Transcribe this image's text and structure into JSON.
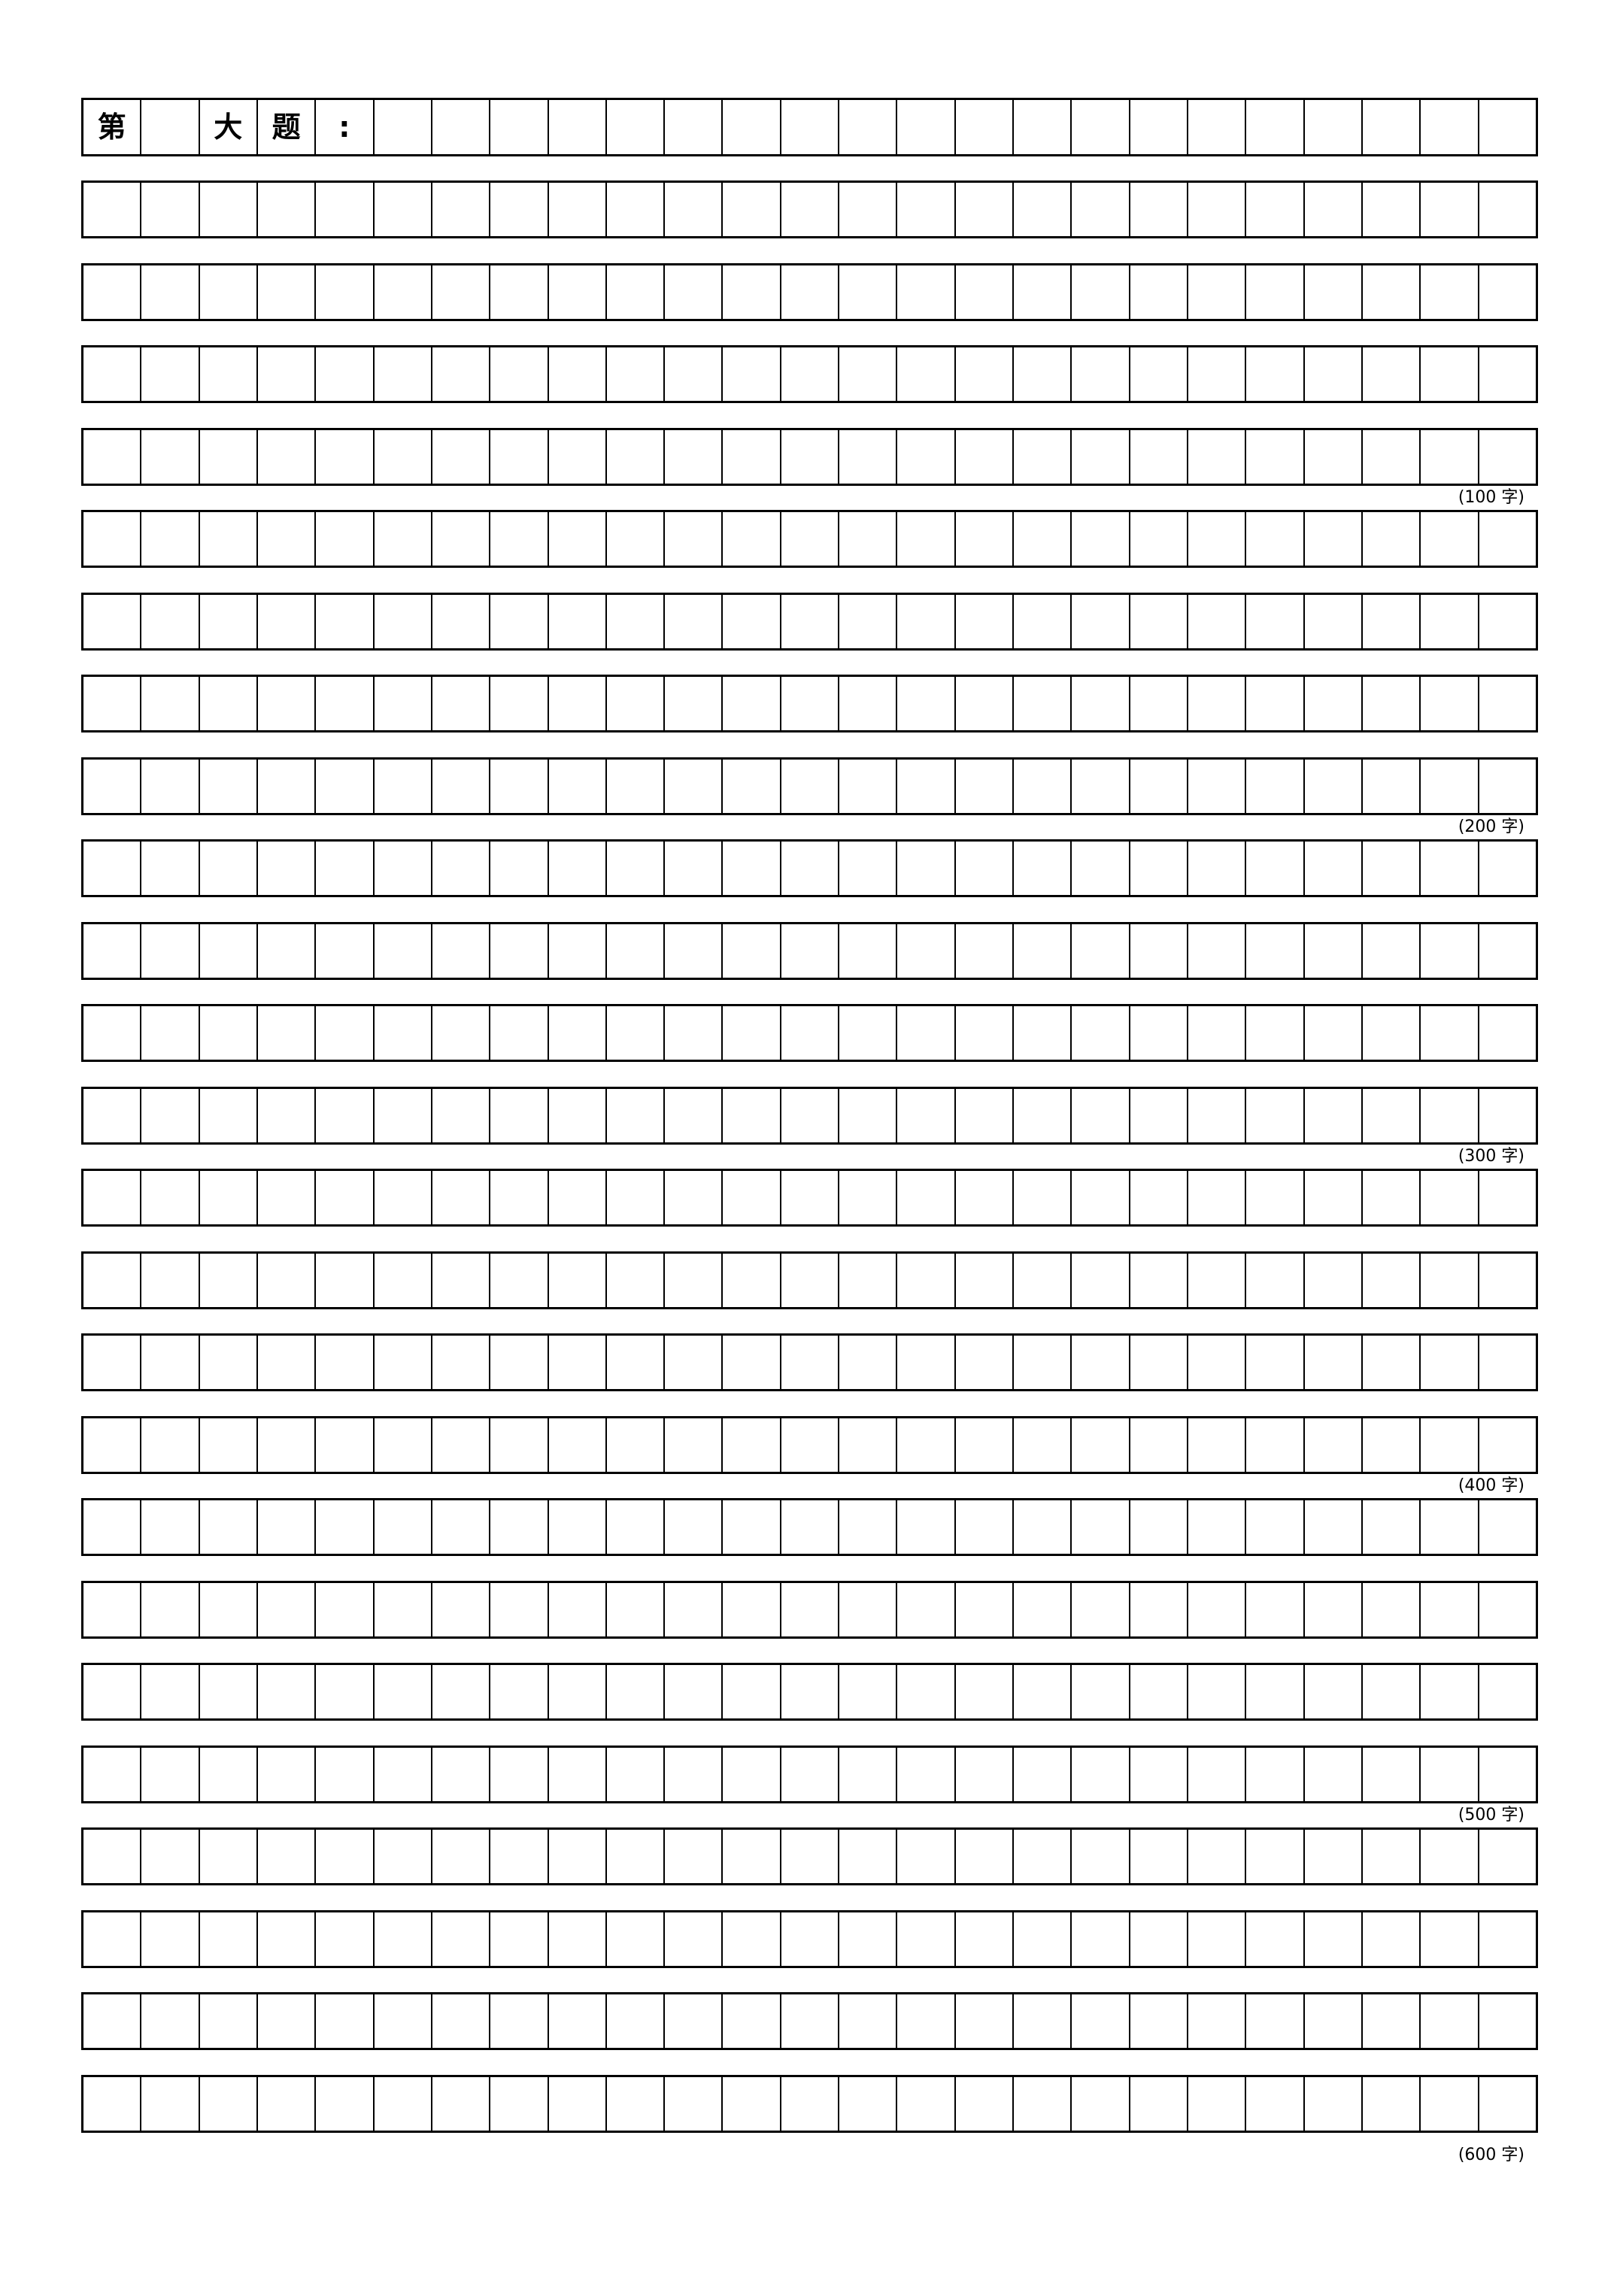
{
  "page": {
    "background_color": "#ffffff",
    "grid_line_color": "#000000",
    "text_color": "#000000"
  },
  "header": {
    "cells": [
      "第",
      "",
      "大",
      "题",
      ":",
      "",
      "",
      "",
      "",
      "",
      "",
      "",
      "",
      "",
      "",
      "",
      "",
      "",
      "",
      "",
      "",
      "",
      "",
      "",
      ""
    ]
  },
  "grid": {
    "columns": 25,
    "rows_per_group": 4,
    "total_rows": 24,
    "groups": [
      {
        "label": "(100 字)"
      },
      {
        "label": "(200 字)"
      },
      {
        "label": "(300 字)"
      },
      {
        "label": "(400 字)"
      },
      {
        "label": "(500 字)"
      },
      {
        "label": "(600 字)"
      }
    ]
  }
}
